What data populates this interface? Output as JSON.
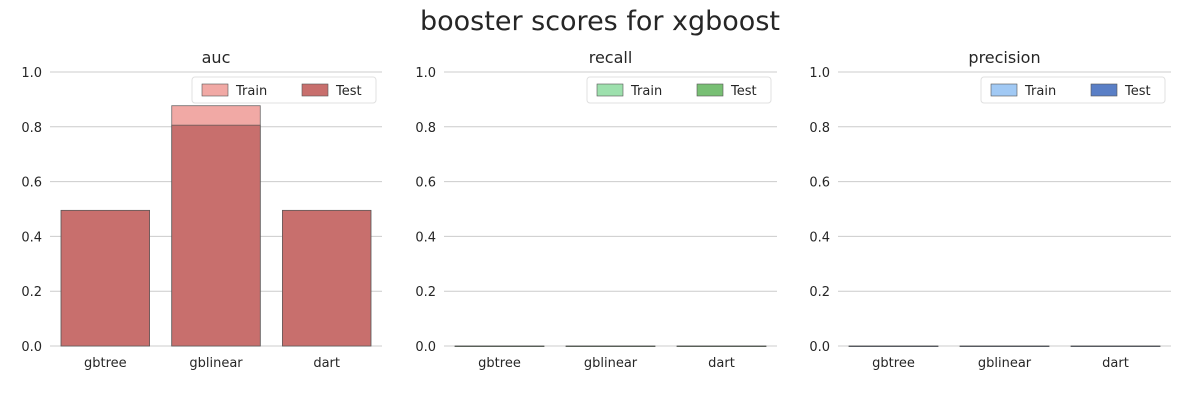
{
  "figure": {
    "title": "booster scores for xgboost"
  },
  "chart_data": [
    {
      "type": "bar",
      "title": "auc",
      "categories": [
        "gbtree",
        "gblinear",
        "dart"
      ],
      "series": [
        {
          "name": "Train",
          "values": [
            0.495,
            0.877,
            0.495
          ],
          "color": "#f1a9a5"
        },
        {
          "name": "Test",
          "values": [
            0.495,
            0.806,
            0.495
          ],
          "color": "#c86f6d"
        }
      ],
      "ylim": [
        0,
        1.0
      ],
      "yticks": [
        "0.0",
        "0.2",
        "0.4",
        "0.6",
        "0.8",
        "1.0"
      ],
      "grid": "y",
      "legend": "top-right"
    },
    {
      "type": "bar",
      "title": "recall",
      "categories": [
        "gbtree",
        "gblinear",
        "dart"
      ],
      "series": [
        {
          "name": "Train",
          "values": [
            0,
            0,
            0
          ],
          "color": "#9de0ad"
        },
        {
          "name": "Test",
          "values": [
            0,
            0,
            0
          ],
          "color": "#78bf74"
        }
      ],
      "ylim": [
        0,
        1.0
      ],
      "yticks": [
        "0.0",
        "0.2",
        "0.4",
        "0.6",
        "0.8",
        "1.0"
      ],
      "grid": "y",
      "legend": "top-right"
    },
    {
      "type": "bar",
      "title": "precision",
      "categories": [
        "gbtree",
        "gblinear",
        "dart"
      ],
      "series": [
        {
          "name": "Train",
          "values": [
            0,
            0,
            0
          ],
          "color": "#a1c9f4"
        },
        {
          "name": "Test",
          "values": [
            0,
            0,
            0
          ],
          "color": "#5a7fc6"
        }
      ],
      "ylim": [
        0,
        1.0
      ],
      "yticks": [
        "0.0",
        "0.2",
        "0.4",
        "0.6",
        "0.8",
        "1.0"
      ],
      "grid": "y",
      "legend": "top-right"
    }
  ]
}
